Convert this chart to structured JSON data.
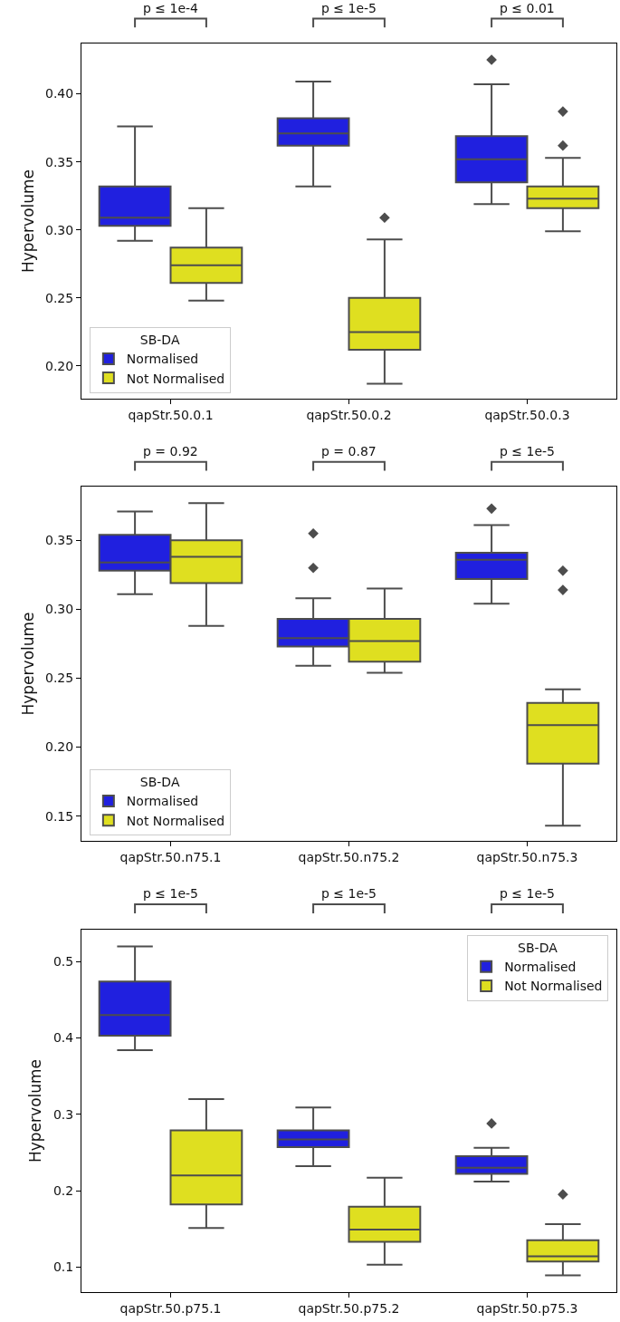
{
  "chart_data": [
    {
      "type": "box",
      "categories": [
        "qapStr.50.0.1",
        "qapStr.50.0.2",
        "qapStr.50.0.3"
      ],
      "ylabel": "Hypervolume",
      "legend_title": "SB-DA",
      "legend": "bottom left",
      "grid": false,
      "marker": "diamond",
      "ylim": [
        0.176,
        0.437
      ],
      "yticks": [
        {
          "value": 0.2,
          "label": "0.20"
        },
        0.25,
        {
          "value": 0.3,
          "label": "0.30"
        },
        0.35,
        {
          "value": 0.4,
          "label": "0.40"
        }
      ],
      "annotations": [
        "p ≤ 1e-4",
        "p ≤ 1e-5",
        "p ≤ 0.01"
      ],
      "series": [
        {
          "name": "Normalised",
          "color": "#2020df",
          "boxes": [
            {
              "low": 0.292,
              "q1": 0.303,
              "median": 0.309,
              "q3": 0.332,
              "high": 0.376
            },
            {
              "low": 0.332,
              "q1": 0.362,
              "median": 0.371,
              "q3": 0.382,
              "high": 0.409
            },
            {
              "low": 0.319,
              "q1": 0.335,
              "median": 0.352,
              "q3": 0.369,
              "high": 0.407,
              "outliers": [
                0.425
              ]
            }
          ]
        },
        {
          "name": "Not Normalised",
          "color": "#dfdf20",
          "boxes": [
            {
              "low": 0.248,
              "q1": 0.261,
              "median": 0.274,
              "q3": 0.287,
              "high": 0.316
            },
            {
              "low": 0.187,
              "q1": 0.212,
              "median": 0.225,
              "q3": 0.25,
              "high": 0.293,
              "outliers": [
                0.309
              ]
            },
            {
              "low": 0.299,
              "q1": 0.316,
              "median": 0.323,
              "q3": 0.332,
              "high": 0.353,
              "outliers": [
                0.362,
                0.387
              ]
            }
          ]
        }
      ]
    },
    {
      "type": "box",
      "categories": [
        "qapStr.50.n75.1",
        "qapStr.50.n75.2",
        "qapStr.50.n75.3"
      ],
      "ylabel": "Hypervolume",
      "legend_title": "SB-DA",
      "legend": "bottom left",
      "grid": false,
      "marker": "diamond",
      "ylim": [
        0.132,
        0.389
      ],
      "yticks": [
        0.15,
        {
          "value": 0.2,
          "label": "0.20"
        },
        0.25,
        {
          "value": 0.3,
          "label": "0.30"
        },
        0.35
      ],
      "annotations": [
        "p = 0.92",
        "p = 0.87",
        "p ≤ 1e-5"
      ],
      "series": [
        {
          "name": "Normalised",
          "color": "#2020df",
          "boxes": [
            {
              "low": 0.311,
              "q1": 0.328,
              "median": 0.334,
              "q3": 0.354,
              "high": 0.371
            },
            {
              "low": 0.259,
              "q1": 0.273,
              "median": 0.279,
              "q3": 0.293,
              "high": 0.308,
              "outliers": [
                0.33,
                0.355
              ]
            },
            {
              "low": 0.304,
              "q1": 0.322,
              "median": 0.336,
              "q3": 0.341,
              "high": 0.361,
              "outliers": [
                0.373
              ]
            }
          ]
        },
        {
          "name": "Not Normalised",
          "color": "#dfdf20",
          "boxes": [
            {
              "low": 0.288,
              "q1": 0.319,
              "median": 0.338,
              "q3": 0.35,
              "high": 0.377
            },
            {
              "low": 0.254,
              "q1": 0.262,
              "median": 0.277,
              "q3": 0.293,
              "high": 0.315
            },
            {
              "low": 0.143,
              "q1": 0.188,
              "median": 0.216,
              "q3": 0.232,
              "high": 0.242,
              "outliers": [
                0.314,
                0.328
              ]
            }
          ]
        }
      ]
    },
    {
      "type": "box",
      "categories": [
        "qapStr.50.p75.1",
        "qapStr.50.p75.2",
        "qapStr.50.p75.3"
      ],
      "ylabel": "Hypervolume",
      "legend_title": "SB-DA",
      "legend": "top right",
      "grid": false,
      "marker": "diamond",
      "ylim": [
        0.067,
        0.542
      ],
      "yticks": [
        0.1,
        0.2,
        0.3,
        0.4,
        0.5
      ],
      "annotations": [
        "p ≤ 1e-5",
        "p ≤ 1e-5",
        "p ≤ 1e-5"
      ],
      "series": [
        {
          "name": "Normalised",
          "color": "#2020df",
          "boxes": [
            {
              "low": 0.384,
              "q1": 0.403,
              "median": 0.43,
              "q3": 0.474,
              "high": 0.52
            },
            {
              "low": 0.232,
              "q1": 0.257,
              "median": 0.267,
              "q3": 0.279,
              "high": 0.309
            },
            {
              "low": 0.212,
              "q1": 0.222,
              "median": 0.23,
              "q3": 0.245,
              "high": 0.256,
              "outliers": [
                0.288
              ]
            }
          ]
        },
        {
          "name": "Not Normalised",
          "color": "#dfdf20",
          "boxes": [
            {
              "low": 0.151,
              "q1": 0.182,
              "median": 0.22,
              "q3": 0.279,
              "high": 0.32
            },
            {
              "low": 0.103,
              "q1": 0.133,
              "median": 0.149,
              "q3": 0.179,
              "high": 0.217
            },
            {
              "low": 0.089,
              "q1": 0.107,
              "median": 0.114,
              "q3": 0.135,
              "high": 0.156,
              "outliers": [
                0.195
              ]
            }
          ]
        }
      ]
    }
  ]
}
